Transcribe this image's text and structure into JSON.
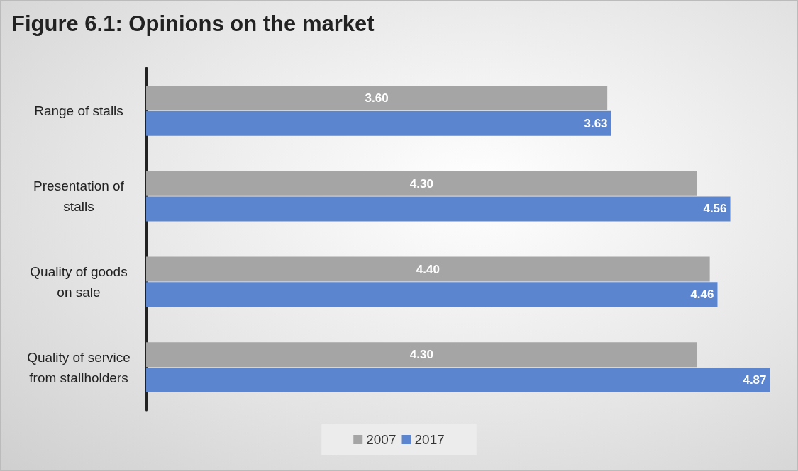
{
  "chart_data": {
    "type": "bar",
    "orientation": "horizontal",
    "title": "Figure 6.1: Opinions on the market",
    "categories": [
      "Range of stalls",
      "Presentation of\nstalls",
      "Quality of goods\non sale",
      "Quality of service\nfrom stallholders"
    ],
    "series": [
      {
        "name": "2007",
        "color": "#a5a5a5",
        "values": [
          3.6,
          4.3,
          4.4,
          4.3
        ],
        "value_labels": [
          "3.60",
          "4.30",
          "4.40",
          "4.30"
        ]
      },
      {
        "name": "2017",
        "color": "#5b86cf",
        "values": [
          3.63,
          4.56,
          4.46,
          4.87
        ],
        "value_labels": [
          "3.63",
          "4.56",
          "4.46",
          "4.87"
        ]
      }
    ],
    "legend": "bottom",
    "grid": false
  }
}
